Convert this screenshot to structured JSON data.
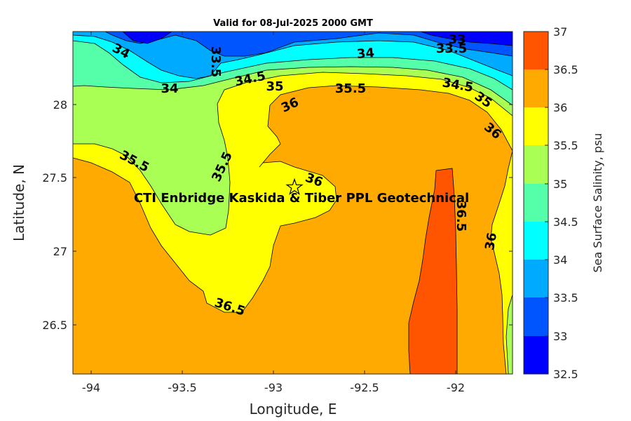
{
  "title": "Valid for 08-Jul-2025 2000 GMT",
  "x_axis": {
    "label": "Longitude, E",
    "ticks": [
      "-94",
      "-93.5",
      "-93",
      "-92.5",
      "-92"
    ]
  },
  "y_axis": {
    "label": "Latitude, N",
    "ticks": [
      "28",
      "27.5",
      "27",
      "26.5"
    ]
  },
  "colorbar": {
    "label": "Sea Surface Salinity, psu",
    "ticks": [
      "37",
      "36.5",
      "36",
      "35.5",
      "35",
      "34.5",
      "34",
      "33.5",
      "33",
      "32.5"
    ],
    "colors": [
      "#ff5500",
      "#ffaa00",
      "#ffff00",
      "#aaff55",
      "#55ffaa",
      "#00ffff",
      "#00aaff",
      "#0055ff",
      "#0000ff"
    ]
  },
  "site": {
    "label": "CTI Enbridge  Kaskida & Tiber PPL Geotechnical",
    "marker": "star-icon"
  },
  "contour_labels": [
    "34",
    "33.5",
    "33",
    "33.5",
    "34",
    "34.5",
    "35",
    "35.5",
    "34",
    "36",
    "34.5",
    "35",
    "36",
    "35.5",
    "35.5",
    "36",
    "36.5",
    "36",
    "36.5"
  ],
  "chart_data": {
    "type": "heatmap",
    "title": "Valid for 08-Jul-2025 2000 GMT",
    "xlabel": "Longitude, E",
    "ylabel": "Latitude, N",
    "xlim": [
      -94.1,
      -91.7
    ],
    "ylim": [
      26.15,
      28.5
    ],
    "colorbar_range": [
      32.5,
      37
    ],
    "contour_levels": [
      32.5,
      33,
      33.5,
      34,
      34.5,
      35,
      35.5,
      36,
      36.5,
      37
    ],
    "site_marker": {
      "lon": -92.88,
      "lat": 27.43
    }
  }
}
